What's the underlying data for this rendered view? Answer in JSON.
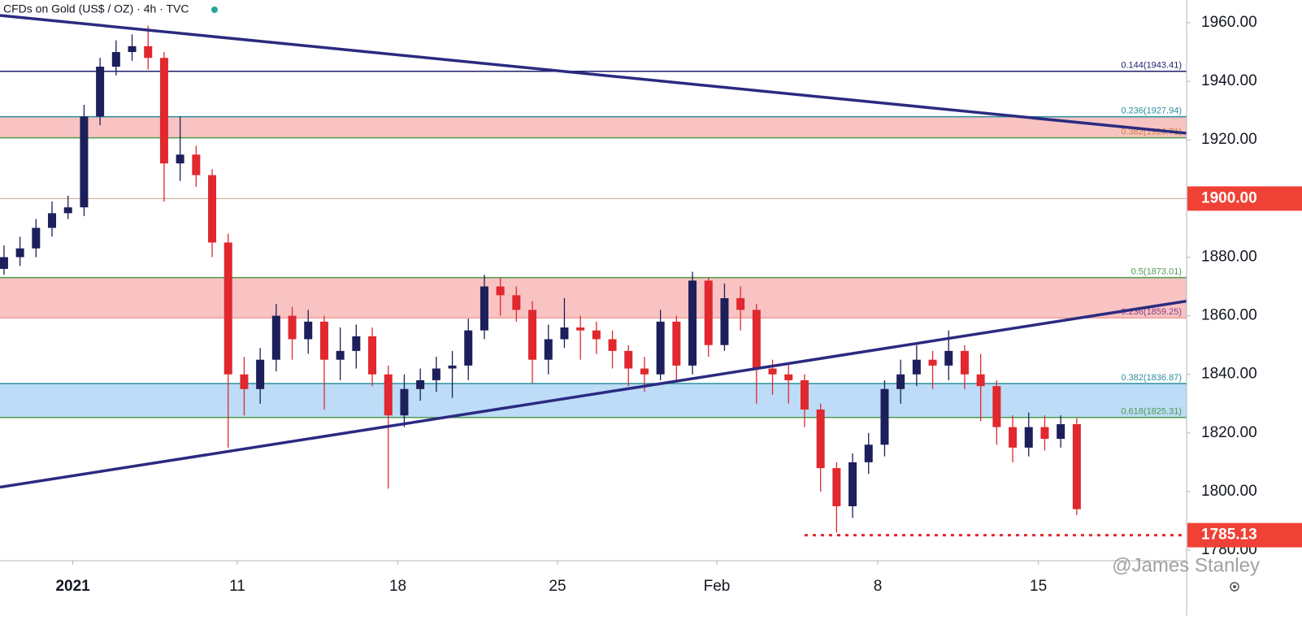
{
  "chart_data": {
    "type": "candlestick",
    "title": "CFDs on Gold (US$ / OZ) · 4h · TVC",
    "watermark": "@James Stanley",
    "up_color": "#1c1f5a",
    "down_color": "#e0282e",
    "xlim": [
      -0.25,
      73.86
    ],
    "ylim": [
      1776.42,
      1967.76
    ],
    "xticks": [
      {
        "value": 4.3,
        "label": "2021"
      },
      {
        "value": 14.57,
        "label": "11"
      },
      {
        "value": 24.6,
        "label": "18"
      },
      {
        "value": 34.57,
        "label": "25"
      },
      {
        "value": 44.52,
        "label": "Feb"
      },
      {
        "value": 54.57,
        "label": "8"
      },
      {
        "value": 64.6,
        "label": "15"
      }
    ],
    "yticks": [
      {
        "value": 1780,
        "label": "1780.00"
      },
      {
        "value": 1800,
        "label": "1800.00"
      },
      {
        "value": 1820,
        "label": "1820.00"
      },
      {
        "value": 1840,
        "label": "1840.00"
      },
      {
        "value": 1860,
        "label": "1860.00"
      },
      {
        "value": 1880,
        "label": "1880.00"
      },
      {
        "value": 1900,
        "label": "1900.00"
      },
      {
        "value": 1920,
        "label": "1920.00"
      },
      {
        "value": 1940,
        "label": "1940.00"
      },
      {
        "value": 1960,
        "label": "1960.00"
      }
    ],
    "x": [
      0,
      1,
      2,
      3,
      4,
      5,
      6,
      7,
      8,
      9,
      10,
      11,
      12,
      13,
      14,
      15,
      16,
      17,
      18,
      19,
      20,
      21,
      22,
      23,
      24,
      25,
      26,
      27,
      28,
      29,
      30,
      31,
      32,
      33,
      34,
      35,
      36,
      37,
      38,
      39,
      40,
      41,
      42,
      43,
      44,
      45,
      46,
      47,
      48,
      49,
      50,
      51,
      52,
      53,
      54,
      55,
      56,
      57,
      58,
      59,
      60,
      61,
      62,
      63,
      64,
      65,
      66,
      67
    ],
    "open": [
      1876,
      1880,
      1883,
      1890,
      1895,
      1897,
      1928,
      1945,
      1950,
      1952,
      1948,
      1912,
      1915,
      1908,
      1885,
      1840,
      1835,
      1845,
      1860,
      1852,
      1858,
      1845,
      1848,
      1853,
      1840,
      1826,
      1835,
      1838,
      1842,
      1843,
      1855,
      1870,
      1867,
      1862,
      1845,
      1852,
      1856,
      1855,
      1852,
      1848,
      1842,
      1840,
      1858,
      1843,
      1872,
      1850,
      1866,
      1862,
      1842,
      1840,
      1838,
      1828,
      1808,
      1795,
      1810,
      1816,
      1835,
      1840,
      1845,
      1843,
      1848,
      1840,
      1836,
      1822,
      1815,
      1822,
      1818,
      1823
    ],
    "high": [
      1884,
      1887,
      1893,
      1899,
      1901,
      1932,
      1948,
      1954,
      1956,
      1959,
      1950,
      1928,
      1918,
      1910,
      1888,
      1846,
      1849,
      1864,
      1863,
      1862,
      1860,
      1856,
      1857,
      1856,
      1843,
      1840,
      1842,
      1846,
      1848,
      1859,
      1874,
      1873,
      1870,
      1865,
      1857,
      1866,
      1860,
      1858,
      1855,
      1850,
      1846,
      1862,
      1860,
      1875,
      1873,
      1871,
      1870,
      1864,
      1845,
      1844,
      1840,
      1830,
      1810,
      1813,
      1820,
      1838,
      1845,
      1850,
      1848,
      1855,
      1850,
      1847,
      1838,
      1826,
      1827,
      1826,
      1826,
      1825
    ],
    "low": [
      1874,
      1877,
      1880,
      1887,
      1893,
      1894,
      1925,
      1942,
      1947,
      1944,
      1899,
      1906,
      1904,
      1880,
      1815,
      1826,
      1830,
      1841,
      1845,
      1847,
      1828,
      1838,
      1842,
      1836,
      1801,
      1822,
      1831,
      1834,
      1832,
      1838,
      1852,
      1860,
      1858,
      1837,
      1840,
      1849,
      1845,
      1847,
      1842,
      1836,
      1834,
      1838,
      1838,
      1840,
      1846,
      1848,
      1855,
      1830,
      1833,
      1830,
      1822,
      1800,
      1786,
      1791,
      1806,
      1812,
      1830,
      1836,
      1835,
      1838,
      1835,
      1824,
      1816,
      1810,
      1812,
      1814,
      1815,
      1792
    ],
    "close": [
      1880,
      1883,
      1890,
      1895,
      1897,
      1928,
      1945,
      1950,
      1952,
      1948,
      1912,
      1915,
      1908,
      1885,
      1840,
      1835,
      1845,
      1860,
      1852,
      1858,
      1845,
      1848,
      1853,
      1840,
      1826,
      1835,
      1838,
      1842,
      1843,
      1855,
      1870,
      1867,
      1862,
      1845,
      1852,
      1856,
      1855,
      1852,
      1848,
      1842,
      1840,
      1858,
      1843,
      1872,
      1850,
      1866,
      1862,
      1842,
      1840,
      1838,
      1828,
      1808,
      1795,
      1810,
      1816,
      1835,
      1840,
      1845,
      1843,
      1848,
      1840,
      1836,
      1822,
      1815,
      1822,
      1818,
      1823,
      1794
    ],
    "zones": [
      {
        "from": 1920.71,
        "to": 1927.94,
        "color": "#f8c3c2"
      },
      {
        "from": 1859.25,
        "to": 1873.01,
        "color": "#f8c3c2"
      },
      {
        "from": 1825.31,
        "to": 1836.87,
        "color": "#bcdcf7"
      }
    ],
    "levels": [
      {
        "value": 1943.41,
        "label": "0.144(1943.41)",
        "color": "#1e1e6e"
      },
      {
        "value": 1927.94,
        "label": "0.236(1927.94)",
        "color": "#2a8f9c"
      },
      {
        "value": 1920.71,
        "label": "0.382(1920.71)",
        "color": "#c8823a",
        "line_color": "#4e9a4e"
      },
      {
        "value": 1873.01,
        "label": "0.5(1873.01)",
        "color": "#4e9a4e"
      },
      {
        "value": 1859.25,
        "label": "0.236(1859.25)",
        "color": "#8a3f8a",
        "line_color": "#f3a0a0"
      },
      {
        "value": 1836.87,
        "label": "0.382(1836.87)",
        "color": "#2a8f9c"
      },
      {
        "value": 1825.31,
        "label": "0.618(1825.31)",
        "color": "#4e9a4e"
      }
    ],
    "hline": {
      "value": 1900,
      "color": "#c9a48a"
    },
    "trendlines": [
      {
        "x": [
          -0.25,
          73.86
        ],
        "y": [
          1962.5,
          1922.3
        ],
        "color": "#2b2a80"
      },
      {
        "x": [
          -0.25,
          73.86
        ],
        "y": [
          1801.5,
          1865
        ],
        "color": "#2b2a80"
      }
    ],
    "support": {
      "x": 50,
      "value": 1785.13,
      "color": "#e0282e"
    },
    "price_labels": [
      {
        "value": 1900,
        "label": "1900.00",
        "color": "#ef4136"
      },
      {
        "value": 1785.13,
        "label": "1785.13",
        "color": "#ef4136"
      }
    ]
  }
}
